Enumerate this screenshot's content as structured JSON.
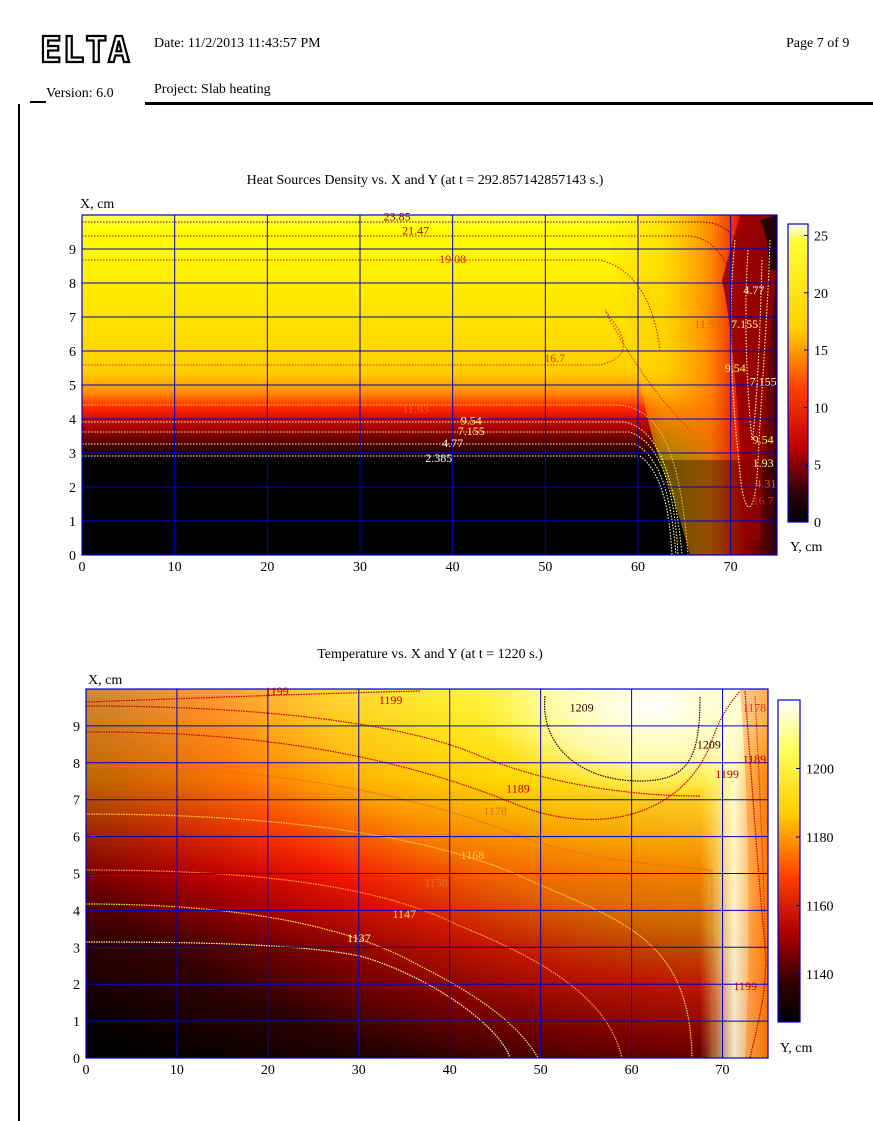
{
  "header": {
    "logo_text": "ELTA",
    "version": "Version: 6.0",
    "date": "Date: 11/2/2013 11:43:57 PM",
    "page": "Page 7 of 9",
    "project": "Project: Slab heating"
  },
  "chart_data": [
    {
      "type": "heatmap",
      "title": "Heat Sources Density vs. X and Y (at t = 292.857142857143 s.)",
      "xlabel": "Y, cm",
      "ylabel": "X, cm",
      "xlim": [
        0,
        75
      ],
      "ylim": [
        0,
        10
      ],
      "xticks": [
        0,
        10,
        20,
        30,
        40,
        50,
        60,
        70
      ],
      "yticks": [
        0,
        1,
        2,
        3,
        4,
        5,
        6,
        7,
        8,
        9
      ],
      "colorbar": {
        "min": 0,
        "max": 26,
        "ticks": [
          0,
          5,
          10,
          15,
          20,
          25
        ]
      },
      "contour_labels": [
        {
          "text": "23.85",
          "x": 34,
          "y": 9.95,
          "color": "#7a0000"
        },
        {
          "text": "21.47",
          "x": 36,
          "y": 9.55,
          "color": "#c00000"
        },
        {
          "text": "19.08",
          "x": 40,
          "y": 8.7,
          "color": "#d02020"
        },
        {
          "text": "16.7",
          "x": 51,
          "y": 5.8,
          "color": "#e03030"
        },
        {
          "text": "11.93",
          "x": 36,
          "y": 4.3,
          "color": "#e06020"
        },
        {
          "text": "9.54",
          "x": 42,
          "y": 3.95,
          "color": "#ffff60"
        },
        {
          "text": "7.155",
          "x": 42,
          "y": 3.65,
          "color": "#ffff90"
        },
        {
          "text": "4.77",
          "x": 40,
          "y": 3.3,
          "color": "#ffffc0"
        },
        {
          "text": "2.385",
          "x": 38.5,
          "y": 2.85,
          "color": "#ffffff"
        },
        {
          "text": "4.77",
          "x": 72.5,
          "y": 7.8,
          "color": "#ffffc0"
        },
        {
          "text": "11.93",
          "x": 67.5,
          "y": 6.8,
          "color": "#e06020"
        },
        {
          "text": "7.155",
          "x": 71.5,
          "y": 6.8,
          "color": "#ffff90"
        },
        {
          "text": "9.54",
          "x": 70.5,
          "y": 5.5,
          "color": "#ffff60"
        },
        {
          "text": "7.155",
          "x": 73.5,
          "y": 5.1,
          "color": "#ffff90"
        },
        {
          "text": "9.54",
          "x": 73.5,
          "y": 3.4,
          "color": "#ffff60"
        },
        {
          "text": "1.93",
          "x": 73.5,
          "y": 2.7,
          "color": "#ffff90"
        },
        {
          "text": "4.31",
          "x": 73.8,
          "y": 2.1,
          "color": "#e06020"
        },
        {
          "text": "16.7",
          "x": 73.5,
          "y": 1.6,
          "color": "#d02020"
        }
      ]
    },
    {
      "type": "heatmap",
      "title": "Temperature vs. X and Y (at t = 1220 s.)",
      "xlabel": "Y, cm",
      "ylabel": "X, cm",
      "xlim": [
        0,
        75
      ],
      "ylim": [
        0,
        10
      ],
      "xticks": [
        0,
        10,
        20,
        30,
        40,
        50,
        60,
        70
      ],
      "yticks": [
        0,
        1,
        2,
        3,
        4,
        5,
        6,
        7,
        8,
        9
      ],
      "colorbar": {
        "min": 1126,
        "max": 1220,
        "ticks": [
          1140,
          1160,
          1180,
          1200
        ]
      },
      "contour_labels": [
        {
          "text": "1199",
          "x": 21,
          "y": 9.95,
          "color": "#c00000"
        },
        {
          "text": "1199",
          "x": 33.5,
          "y": 9.7,
          "color": "#c00000"
        },
        {
          "text": "1209",
          "x": 54.5,
          "y": 9.5,
          "color": "#300000"
        },
        {
          "text": "1178",
          "x": 73.5,
          "y": 9.5,
          "color": "#e03030"
        },
        {
          "text": "1209",
          "x": 68.5,
          "y": 8.5,
          "color": "#300000"
        },
        {
          "text": "1189",
          "x": 73.5,
          "y": 8.1,
          "color": "#c00000"
        },
        {
          "text": "1199",
          "x": 70.5,
          "y": 7.7,
          "color": "#c00000"
        },
        {
          "text": "1189",
          "x": 47.5,
          "y": 7.3,
          "color": "#c00000"
        },
        {
          "text": "1178",
          "x": 45,
          "y": 6.7,
          "color": "#e07020"
        },
        {
          "text": "1168",
          "x": 42.5,
          "y": 5.5,
          "color": "#ffd040"
        },
        {
          "text": "1158",
          "x": 38.5,
          "y": 4.75,
          "color": "#e07020"
        },
        {
          "text": "1147",
          "x": 35,
          "y": 3.9,
          "color": "#ffe050"
        },
        {
          "text": "1137",
          "x": 30,
          "y": 3.25,
          "color": "#ffffa0"
        },
        {
          "text": "1199",
          "x": 72.5,
          "y": 1.95,
          "color": "#c00000"
        }
      ]
    }
  ]
}
